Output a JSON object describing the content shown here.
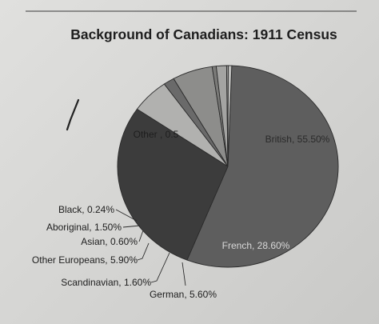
{
  "chart_data": {
    "type": "pie",
    "title": "Background of Canadians: 1911 Census",
    "slices": [
      {
        "label": "British",
        "value_text": "55.50%",
        "value": 55.5,
        "color": "#5e5e5e",
        "label_style": "inside"
      },
      {
        "label": "French",
        "value_text": "28.60%",
        "value": 28.6,
        "color": "#3c3c3c",
        "label_style": "inside"
      },
      {
        "label": "German",
        "value_text": "5.60%",
        "value": 5.6,
        "color": "#b1b1af",
        "label_style": "outside"
      },
      {
        "label": "Scandinavian",
        "value_text": "1.60%",
        "value": 1.6,
        "color": "#6a6a6a",
        "label_style": "outside"
      },
      {
        "label": "Other Europeans",
        "value_text": "5.90%",
        "value": 5.9,
        "color": "#8d8d8b",
        "label_style": "outside"
      },
      {
        "label": "Asian",
        "value_text": "0.60%",
        "value": 0.6,
        "color": "#7a7a78",
        "label_style": "outside"
      },
      {
        "label": "Aboriginal",
        "value_text": "1.50%",
        "value": 1.5,
        "color": "#a4a4a2",
        "label_style": "outside"
      },
      {
        "label": "Black",
        "value_text": "0.24%",
        "value": 0.24,
        "color": "#9a9a98",
        "label_style": "outside"
      },
      {
        "label": "Other",
        "value_text": "0.5",
        "value": 0.5,
        "color": "#bdbdbb",
        "label_style": "inside"
      }
    ],
    "label_text": {
      "British": "British, 55.50%",
      "French": "French, 28.60%",
      "German": "German, 5.60%",
      "Scandinavian": "Scandinavian, 1.60%",
      "Other Europeans": "Other Europeans, 5.90%",
      "Asian": "Asian, 0.60%",
      "Aboriginal": "Aboriginal, 1.50%",
      "Black": "Black, 0.24%",
      "Other": "Other , 0.5"
    }
  }
}
